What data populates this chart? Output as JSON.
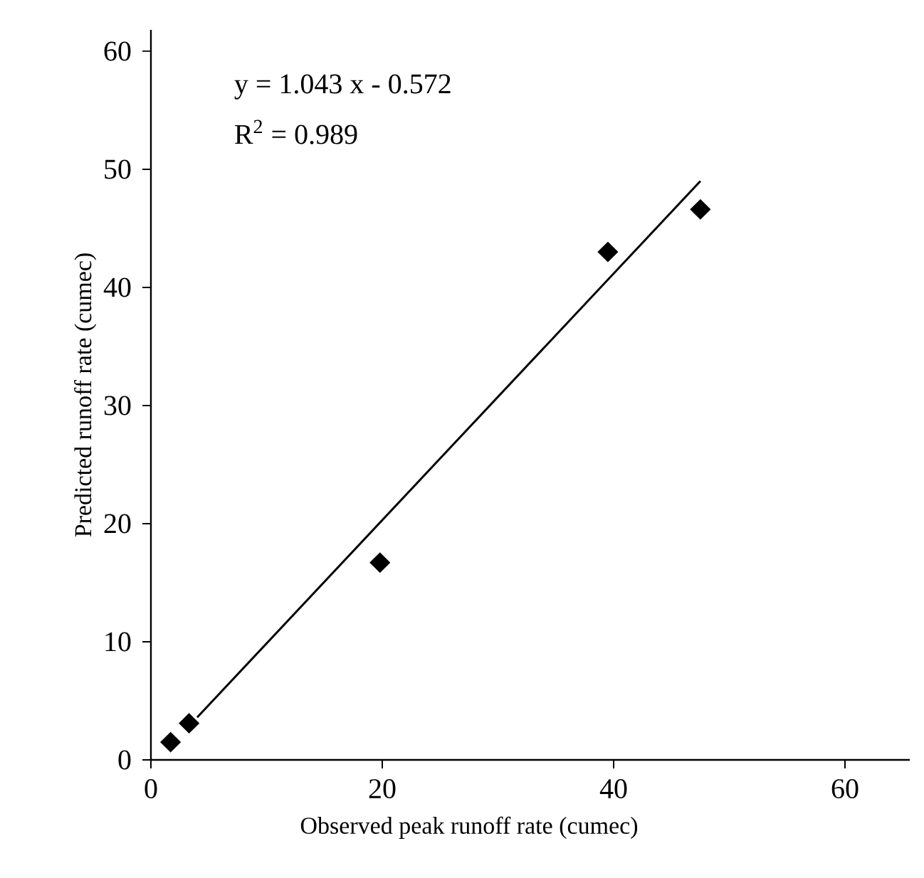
{
  "chart_data": {
    "type": "scatter",
    "xlabel": "Observed peak runoff rate (cumec)",
    "ylabel": "Predicted runoff rate (cumec)",
    "annotations": [
      "y = 1.043 x - 0.572",
      "R$^{2}$ = 0.989"
    ],
    "xlim": [
      0,
      65.6
    ],
    "ylim": [
      0,
      61.8
    ],
    "xticks": [
      0,
      20,
      40,
      60
    ],
    "yticks": [
      0,
      10,
      20,
      30,
      40,
      50,
      60
    ],
    "series": [
      {
        "color": "#000000",
        "marker": "diamond",
        "x": [
          1.7,
          3.3,
          19.8,
          39.5,
          47.5
        ],
        "values": [
          1.5,
          3.1,
          16.7,
          43.0,
          46.6
        ]
      },
      {
        "type": "line",
        "color": "#000000",
        "marker": "none",
        "line_style": "solid",
        "x": [
          4.0,
          47.5
        ],
        "values": [
          3.6,
          49.0
        ]
      }
    ]
  }
}
